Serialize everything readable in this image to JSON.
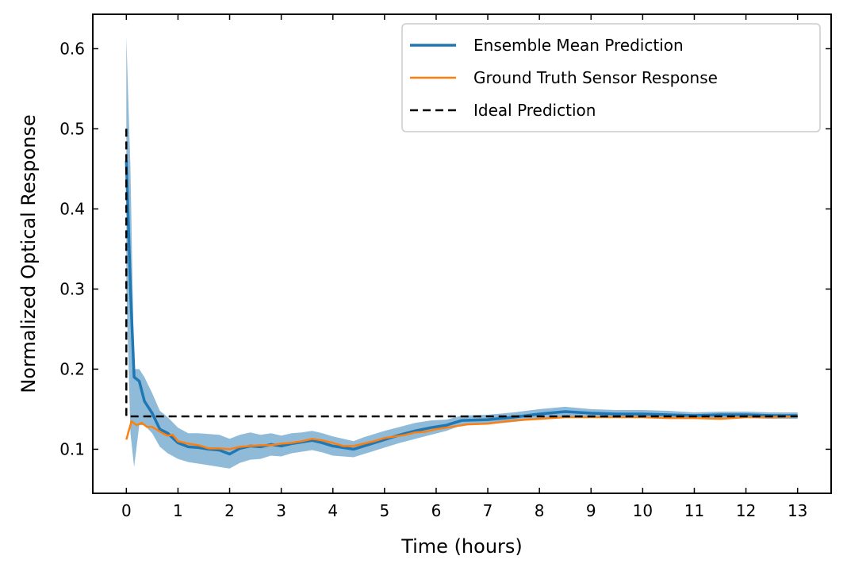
{
  "chart_data": {
    "type": "line",
    "title": "",
    "xlabel": "Time (hours)",
    "ylabel": "Normalized Optical Response",
    "xlim": [
      -0.65,
      13.65
    ],
    "ylim": [
      0.045,
      0.643
    ],
    "xticks": [
      0,
      1,
      2,
      3,
      4,
      5,
      6,
      7,
      8,
      9,
      10,
      11,
      12,
      13
    ],
    "yticks": [
      0.1,
      0.2,
      0.3,
      0.4,
      0.5,
      0.6
    ],
    "xtick_labels": [
      "0",
      "1",
      "2",
      "3",
      "4",
      "5",
      "6",
      "7",
      "8",
      "9",
      "10",
      "11",
      "12",
      "13"
    ],
    "ytick_labels": [
      "0.1",
      "0.2",
      "0.3",
      "0.4",
      "0.5",
      "0.6"
    ],
    "grid": false,
    "legend_position": "top-right",
    "series": [
      {
        "name": "Ensemble Mean Prediction",
        "color": "#1f77b4",
        "x": [
          0.0,
          0.08,
          0.15,
          0.25,
          0.35,
          0.5,
          0.65,
          0.8,
          1.0,
          1.2,
          1.4,
          1.6,
          1.8,
          2.0,
          2.2,
          2.4,
          2.6,
          2.8,
          3.0,
          3.2,
          3.4,
          3.6,
          3.8,
          4.0,
          4.2,
          4.4,
          4.6,
          4.8,
          5.0,
          5.3,
          5.6,
          5.9,
          6.2,
          6.5,
          7.0,
          7.5,
          8.0,
          8.5,
          9.0,
          9.5,
          10.0,
          10.5,
          11.0,
          11.5,
          12.0,
          12.5,
          13.0
        ],
        "y": [
          0.46,
          0.3,
          0.19,
          0.185,
          0.16,
          0.145,
          0.125,
          0.12,
          0.108,
          0.103,
          0.102,
          0.1,
          0.099,
          0.094,
          0.101,
          0.104,
          0.103,
          0.106,
          0.104,
          0.107,
          0.109,
          0.111,
          0.108,
          0.104,
          0.102,
          0.1,
          0.104,
          0.108,
          0.112,
          0.118,
          0.123,
          0.127,
          0.13,
          0.136,
          0.137,
          0.14,
          0.144,
          0.147,
          0.145,
          0.144,
          0.144,
          0.143,
          0.142,
          0.143,
          0.143,
          0.142,
          0.142
        ]
      },
      {
        "name": "Ground Truth Sensor Response",
        "color": "#ff7f0e",
        "x": [
          0.0,
          0.1,
          0.2,
          0.3,
          0.4,
          0.5,
          0.6,
          0.7,
          0.8,
          0.9,
          1.0,
          1.2,
          1.4,
          1.6,
          1.8,
          2.0,
          2.2,
          2.4,
          2.6,
          2.8,
          3.0,
          3.2,
          3.4,
          3.6,
          3.8,
          4.0,
          4.2,
          4.4,
          4.6,
          4.8,
          5.0,
          5.2,
          5.4,
          5.6,
          5.8,
          6.0,
          6.3,
          6.6,
          7.0,
          7.5,
          8.0,
          8.5,
          9.0,
          9.5,
          10.0,
          10.5,
          11.0,
          11.5,
          12.0,
          12.5,
          13.0
        ],
        "y": [
          0.112,
          0.135,
          0.13,
          0.133,
          0.128,
          0.128,
          0.124,
          0.12,
          0.117,
          0.118,
          0.11,
          0.107,
          0.105,
          0.101,
          0.101,
          0.1,
          0.103,
          0.104,
          0.105,
          0.105,
          0.107,
          0.108,
          0.11,
          0.113,
          0.111,
          0.108,
          0.104,
          0.104,
          0.107,
          0.11,
          0.114,
          0.116,
          0.118,
          0.121,
          0.122,
          0.125,
          0.128,
          0.131,
          0.132,
          0.136,
          0.138,
          0.14,
          0.14,
          0.14,
          0.14,
          0.139,
          0.139,
          0.138,
          0.14,
          0.14,
          0.141
        ]
      },
      {
        "name": "Ideal Prediction",
        "color": "#000000",
        "dash": "dashed",
        "x": [
          0.0,
          0.0,
          13.0
        ],
        "y": [
          0.5,
          0.141,
          0.141
        ]
      }
    ],
    "band": {
      "series": "Ensemble Mean Prediction",
      "color": "#1f77b4",
      "x": [
        0.0,
        0.08,
        0.15,
        0.25,
        0.35,
        0.5,
        0.65,
        0.8,
        1.0,
        1.2,
        1.4,
        1.6,
        1.8,
        2.0,
        2.2,
        2.4,
        2.6,
        2.8,
        3.0,
        3.2,
        3.4,
        3.6,
        3.8,
        4.0,
        4.2,
        4.4,
        4.6,
        4.8,
        5.0,
        5.3,
        5.6,
        5.9,
        6.2,
        6.5,
        7.0,
        7.5,
        8.0,
        8.5,
        9.0,
        9.5,
        10.0,
        10.5,
        11.0,
        11.5,
        12.0,
        12.5,
        13.0
      ],
      "lower": [
        0.3,
        0.12,
        0.078,
        0.13,
        0.13,
        0.12,
        0.103,
        0.095,
        0.088,
        0.084,
        0.082,
        0.08,
        0.078,
        0.076,
        0.083,
        0.087,
        0.088,
        0.092,
        0.091,
        0.095,
        0.097,
        0.099,
        0.096,
        0.092,
        0.091,
        0.09,
        0.094,
        0.098,
        0.102,
        0.108,
        0.113,
        0.118,
        0.123,
        0.13,
        0.131,
        0.134,
        0.138,
        0.141,
        0.14,
        0.139,
        0.139,
        0.138,
        0.138,
        0.139,
        0.139,
        0.138,
        0.138
      ],
      "upper": [
        0.615,
        0.45,
        0.2,
        0.2,
        0.19,
        0.17,
        0.148,
        0.14,
        0.127,
        0.12,
        0.12,
        0.119,
        0.118,
        0.113,
        0.118,
        0.121,
        0.118,
        0.12,
        0.117,
        0.12,
        0.121,
        0.123,
        0.12,
        0.116,
        0.113,
        0.11,
        0.115,
        0.119,
        0.123,
        0.128,
        0.133,
        0.136,
        0.137,
        0.142,
        0.143,
        0.146,
        0.15,
        0.153,
        0.15,
        0.149,
        0.149,
        0.148,
        0.146,
        0.147,
        0.147,
        0.146,
        0.146
      ]
    }
  }
}
